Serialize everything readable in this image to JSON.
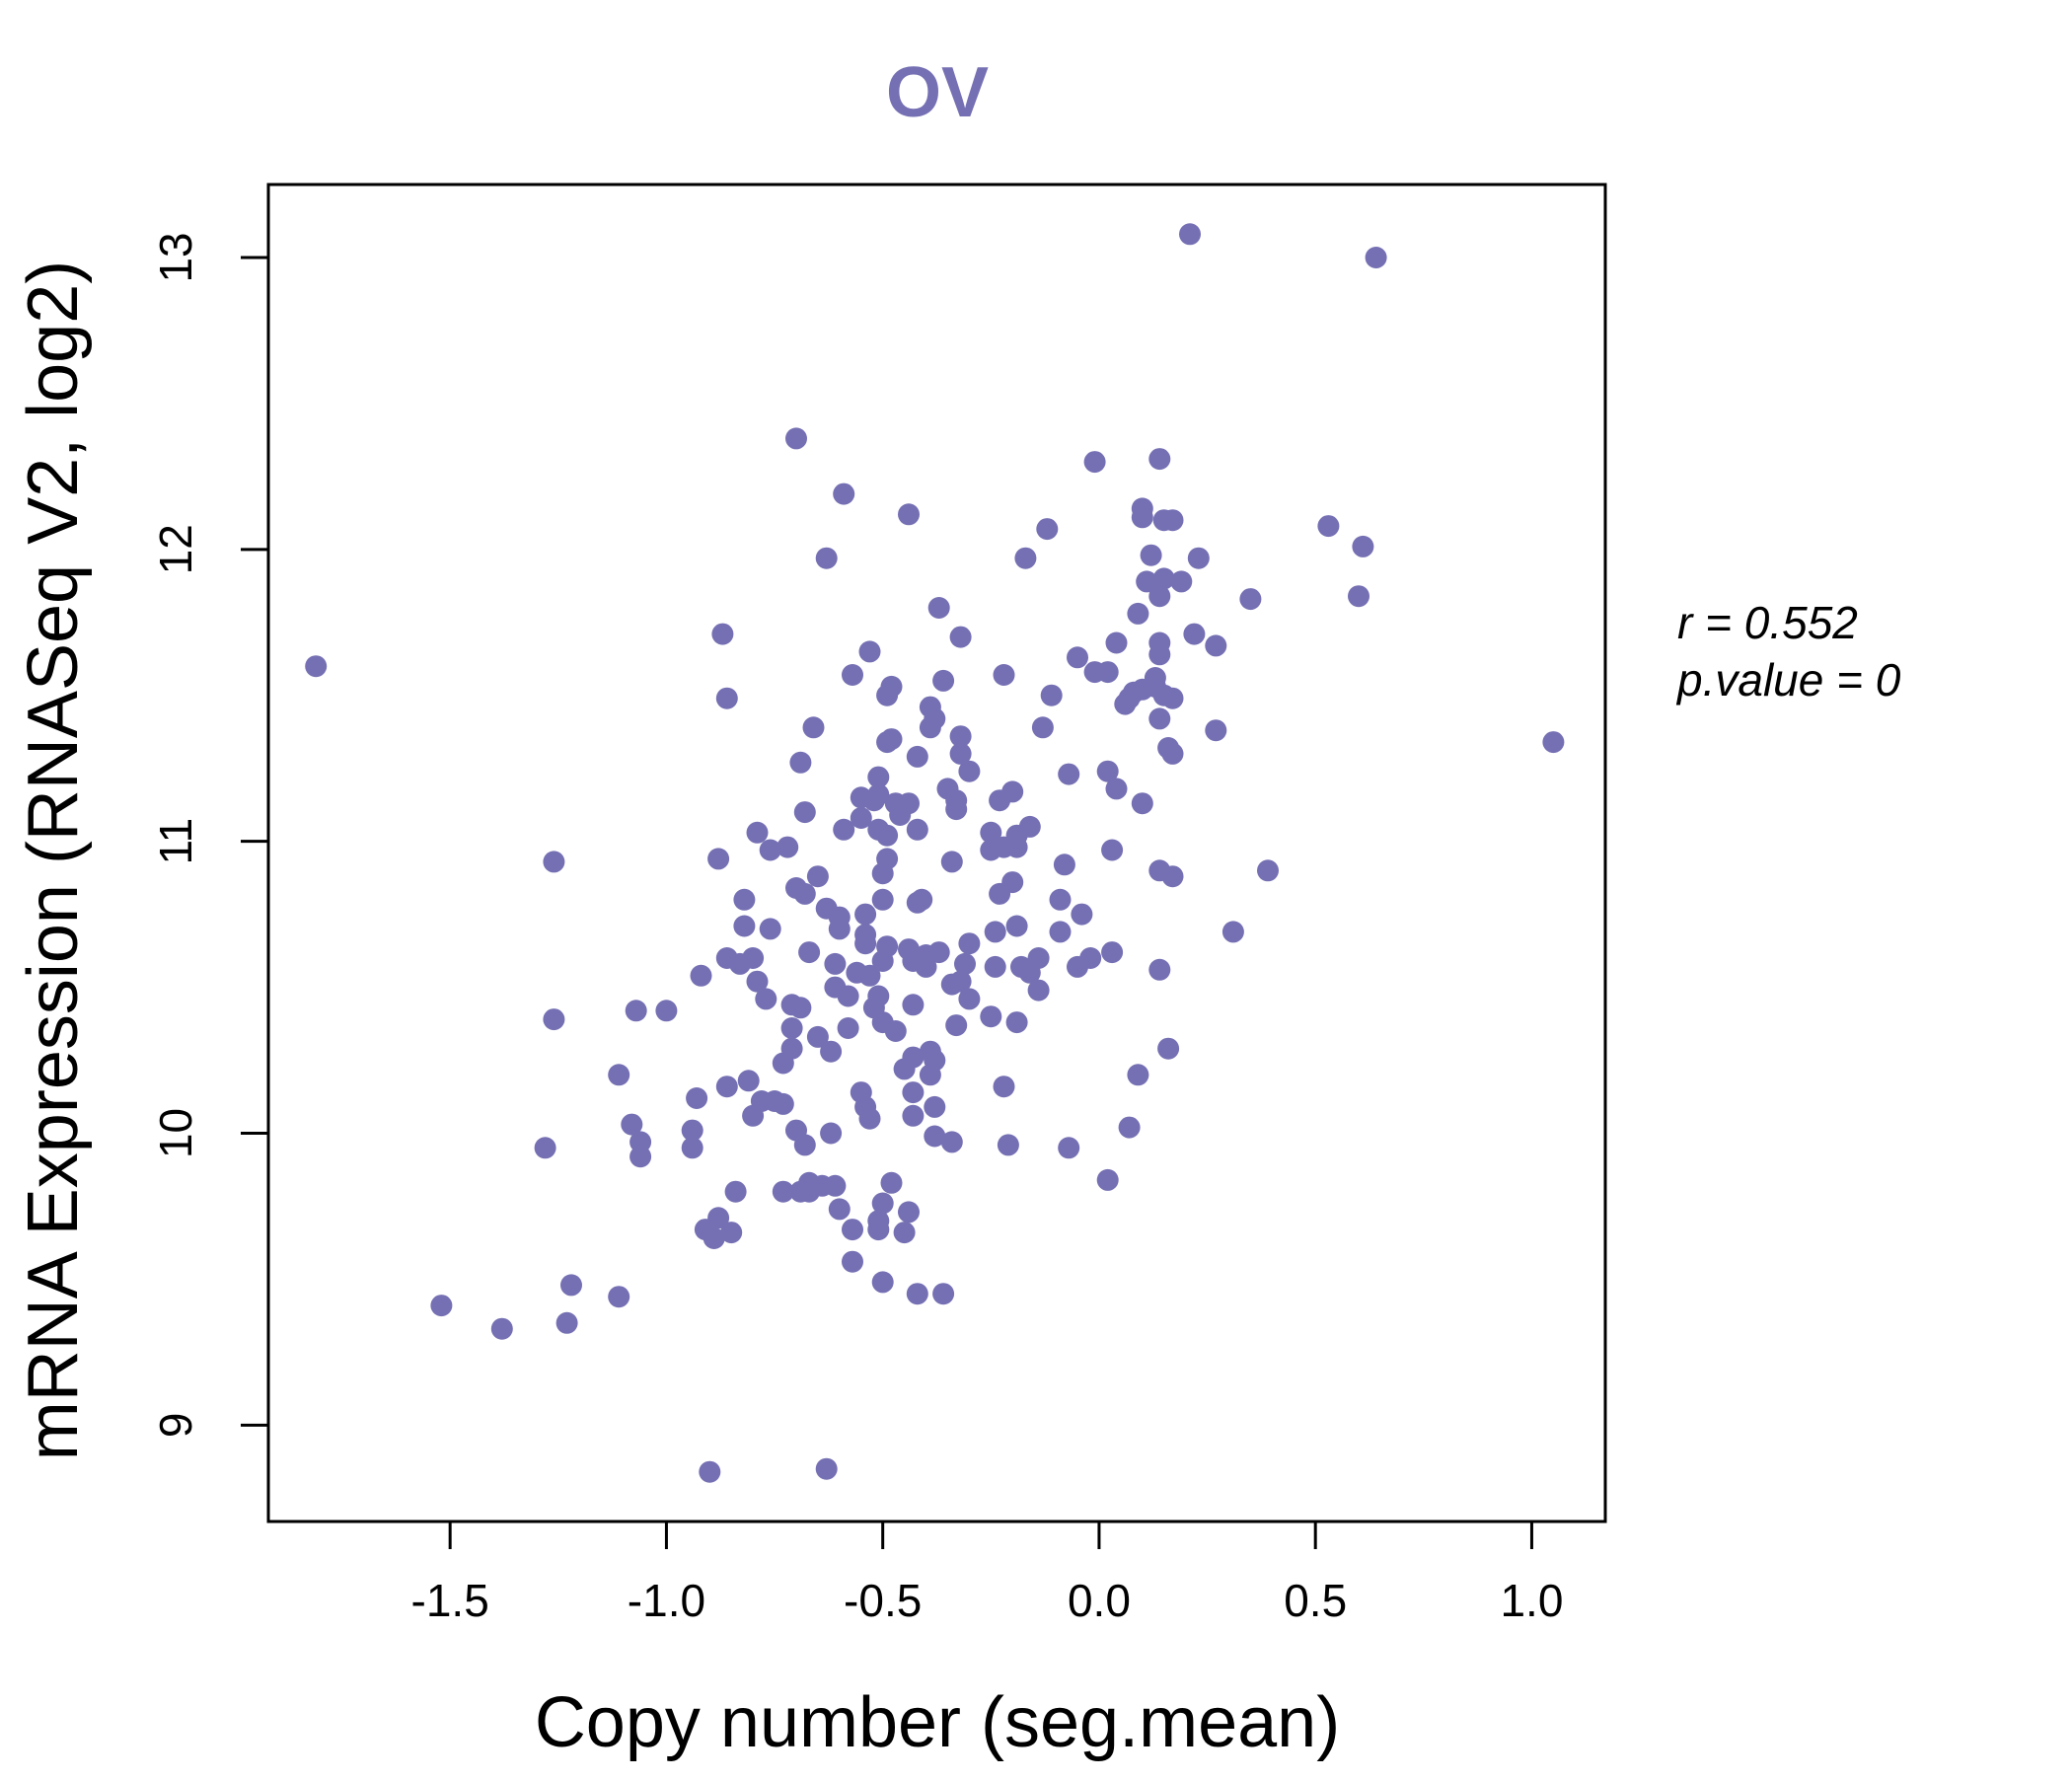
{
  "chart_data": {
    "type": "scatter",
    "title": "OV",
    "xlabel": "Copy number (seg.mean)",
    "ylabel": "mRNA Expression (RNASeq V2, log2)",
    "xlim": [
      -1.92,
      1.17
    ],
    "ylim": [
      8.67,
      13.25
    ],
    "xticks": [
      -1.5,
      -1.0,
      -0.5,
      0.0,
      0.5,
      1.0
    ],
    "xtick_labels": [
      "-1.5",
      "-1.0",
      "-0.5",
      "0.0",
      "0.5",
      "1.0"
    ],
    "yticks": [
      9,
      10,
      11,
      12,
      13
    ],
    "ytick_labels": [
      "9",
      "10",
      "11",
      "12",
      "13"
    ],
    "annotation": {
      "r_label": "r = 0.552",
      "p_label": "p.value = 0"
    },
    "color": "#7570b3",
    "points": [
      [
        -1.81,
        11.6
      ],
      [
        -1.52,
        9.41
      ],
      [
        -1.38,
        9.33
      ],
      [
        -1.28,
        9.95
      ],
      [
        -1.26,
        10.93
      ],
      [
        -1.26,
        10.39
      ],
      [
        -1.23,
        9.35
      ],
      [
        -1.22,
        9.48
      ],
      [
        -1.11,
        9.44
      ],
      [
        -1.11,
        10.2
      ],
      [
        -1.08,
        10.03
      ],
      [
        -1.07,
        10.42
      ],
      [
        -1.06,
        9.97
      ],
      [
        -1.06,
        9.92
      ],
      [
        -1.0,
        10.42
      ],
      [
        -0.94,
        10.01
      ],
      [
        -0.94,
        9.95
      ],
      [
        -0.93,
        10.12
      ],
      [
        -0.92,
        10.54
      ],
      [
        -0.91,
        9.67
      ],
      [
        -0.9,
        8.84
      ],
      [
        -0.89,
        9.64
      ],
      [
        -0.88,
        9.71
      ],
      [
        -0.88,
        10.94
      ],
      [
        -0.87,
        11.71
      ],
      [
        -0.86,
        11.49
      ],
      [
        -0.86,
        10.16
      ],
      [
        -0.86,
        10.6
      ],
      [
        -0.85,
        9.66
      ],
      [
        -0.84,
        9.8
      ],
      [
        -0.83,
        10.58
      ],
      [
        -0.82,
        10.71
      ],
      [
        -0.82,
        10.8
      ],
      [
        -0.81,
        10.18
      ],
      [
        -0.8,
        10.06
      ],
      [
        -0.8,
        10.6
      ],
      [
        -0.79,
        10.52
      ],
      [
        -0.79,
        11.03
      ],
      [
        -0.78,
        10.11
      ],
      [
        -0.77,
        10.46
      ],
      [
        -0.76,
        10.7
      ],
      [
        -0.76,
        10.97
      ],
      [
        -0.75,
        10.11
      ],
      [
        -0.73,
        9.8
      ],
      [
        -0.73,
        10.1
      ],
      [
        -0.73,
        10.24
      ],
      [
        -0.72,
        10.98
      ],
      [
        -0.71,
        10.29
      ],
      [
        -0.71,
        10.44
      ],
      [
        -0.71,
        10.36
      ],
      [
        -0.7,
        12.38
      ],
      [
        -0.7,
        10.84
      ],
      [
        -0.7,
        10.01
      ],
      [
        -0.69,
        11.27
      ],
      [
        -0.69,
        10.43
      ],
      [
        -0.69,
        9.8
      ],
      [
        -0.68,
        11.1
      ],
      [
        -0.68,
        10.82
      ],
      [
        -0.68,
        9.96
      ],
      [
        -0.67,
        9.83
      ],
      [
        -0.67,
        9.8
      ],
      [
        -0.67,
        10.62
      ],
      [
        -0.66,
        11.39
      ],
      [
        -0.65,
        10.33
      ],
      [
        -0.65,
        10.88
      ],
      [
        -0.64,
        9.82
      ],
      [
        -0.63,
        8.85
      ],
      [
        -0.63,
        11.97
      ],
      [
        -0.63,
        10.77
      ],
      [
        -0.62,
        10.28
      ],
      [
        -0.62,
        10.0
      ],
      [
        -0.61,
        9.82
      ],
      [
        -0.61,
        10.58
      ],
      [
        -0.61,
        10.5
      ],
      [
        -0.6,
        9.74
      ],
      [
        -0.6,
        10.74
      ],
      [
        -0.6,
        10.7
      ],
      [
        -0.59,
        11.04
      ],
      [
        -0.59,
        12.19
      ],
      [
        -0.58,
        10.36
      ],
      [
        -0.58,
        10.47
      ],
      [
        -0.57,
        9.56
      ],
      [
        -0.57,
        9.67
      ],
      [
        -0.57,
        11.57
      ],
      [
        -0.56,
        10.55
      ],
      [
        -0.55,
        11.15
      ],
      [
        -0.55,
        11.08
      ],
      [
        -0.55,
        10.14
      ],
      [
        -0.54,
        10.75
      ],
      [
        -0.54,
        10.09
      ],
      [
        -0.54,
        10.68
      ],
      [
        -0.54,
        10.65
      ],
      [
        -0.53,
        10.05
      ],
      [
        -0.53,
        11.65
      ],
      [
        -0.53,
        10.54
      ],
      [
        -0.52,
        11.14
      ],
      [
        -0.52,
        10.43
      ],
      [
        -0.51,
        9.67
      ],
      [
        -0.51,
        9.7
      ],
      [
        -0.51,
        11.04
      ],
      [
        -0.51,
        11.16
      ],
      [
        -0.51,
        11.22
      ],
      [
        -0.51,
        10.47
      ],
      [
        -0.5,
        9.49
      ],
      [
        -0.5,
        9.76
      ],
      [
        -0.5,
        10.89
      ],
      [
        -0.5,
        10.8
      ],
      [
        -0.5,
        10.38
      ],
      [
        -0.5,
        10.59
      ],
      [
        -0.49,
        11.5
      ],
      [
        -0.49,
        10.64
      ],
      [
        -0.49,
        11.34
      ],
      [
        -0.49,
        10.94
      ],
      [
        -0.49,
        11.02
      ],
      [
        -0.48,
        11.53
      ],
      [
        -0.48,
        11.35
      ],
      [
        -0.48,
        9.83
      ],
      [
        -0.47,
        10.35
      ],
      [
        -0.47,
        11.13
      ],
      [
        -0.46,
        11.09
      ],
      [
        -0.45,
        10.22
      ],
      [
        -0.45,
        9.66
      ],
      [
        -0.44,
        12.12
      ],
      [
        -0.44,
        10.63
      ],
      [
        -0.44,
        9.73
      ],
      [
        -0.44,
        11.13
      ],
      [
        -0.43,
        10.06
      ],
      [
        -0.43,
        10.59
      ],
      [
        -0.43,
        10.44
      ],
      [
        -0.43,
        10.26
      ],
      [
        -0.43,
        10.14
      ],
      [
        -0.42,
        10.79
      ],
      [
        -0.42,
        11.04
      ],
      [
        -0.42,
        9.45
      ],
      [
        -0.42,
        11.29
      ],
      [
        -0.41,
        10.8
      ],
      [
        -0.4,
        10.61
      ],
      [
        -0.4,
        10.57
      ],
      [
        -0.39,
        10.2
      ],
      [
        -0.39,
        11.46
      ],
      [
        -0.39,
        10.28
      ],
      [
        -0.39,
        11.39
      ],
      [
        -0.38,
        10.09
      ],
      [
        -0.38,
        11.42
      ],
      [
        -0.38,
        9.99
      ],
      [
        -0.38,
        10.25
      ],
      [
        -0.37,
        11.8
      ],
      [
        -0.37,
        10.62
      ],
      [
        -0.36,
        11.55
      ],
      [
        -0.36,
        9.45
      ],
      [
        -0.35,
        11.18
      ],
      [
        -0.34,
        10.93
      ],
      [
        -0.34,
        10.51
      ],
      [
        -0.34,
        9.97
      ],
      [
        -0.33,
        11.11
      ],
      [
        -0.33,
        11.14
      ],
      [
        -0.33,
        10.37
      ],
      [
        -0.32,
        11.7
      ],
      [
        -0.32,
        10.52
      ],
      [
        -0.32,
        11.36
      ],
      [
        -0.32,
        11.3
      ],
      [
        -0.31,
        10.58
      ],
      [
        -0.3,
        10.65
      ],
      [
        -0.3,
        10.46
      ],
      [
        -0.3,
        11.24
      ],
      [
        -0.25,
        11.03
      ],
      [
        -0.25,
        10.97
      ],
      [
        -0.25,
        10.4
      ],
      [
        -0.24,
        10.57
      ],
      [
        -0.24,
        10.69
      ],
      [
        -0.23,
        11.14
      ],
      [
        -0.23,
        10.82
      ],
      [
        -0.22,
        11.57
      ],
      [
        -0.22,
        10.16
      ],
      [
        -0.22,
        10.98
      ],
      [
        -0.21,
        9.96
      ],
      [
        -0.2,
        10.86
      ],
      [
        -0.2,
        11.17
      ],
      [
        -0.19,
        10.98
      ],
      [
        -0.19,
        10.71
      ],
      [
        -0.19,
        11.02
      ],
      [
        -0.19,
        10.38
      ],
      [
        -0.18,
        10.57
      ],
      [
        -0.17,
        11.97
      ],
      [
        -0.16,
        10.55
      ],
      [
        -0.16,
        11.05
      ],
      [
        -0.14,
        10.49
      ],
      [
        -0.14,
        10.6
      ],
      [
        -0.13,
        11.39
      ],
      [
        -0.12,
        12.07
      ],
      [
        -0.11,
        11.5
      ],
      [
        -0.09,
        10.69
      ],
      [
        -0.09,
        10.8
      ],
      [
        -0.08,
        10.92
      ],
      [
        -0.07,
        11.23
      ],
      [
        -0.07,
        9.95
      ],
      [
        -0.05,
        11.63
      ],
      [
        -0.05,
        10.57
      ],
      [
        -0.04,
        10.75
      ],
      [
        -0.02,
        10.6
      ],
      [
        -0.01,
        11.58
      ],
      [
        -0.01,
        12.3
      ],
      [
        0.02,
        11.24
      ],
      [
        0.02,
        11.58
      ],
      [
        0.02,
        9.84
      ],
      [
        0.03,
        10.62
      ],
      [
        0.03,
        10.97
      ],
      [
        0.04,
        11.68
      ],
      [
        0.04,
        11.18
      ],
      [
        0.06,
        11.47
      ],
      [
        0.07,
        11.49
      ],
      [
        0.07,
        10.02
      ],
      [
        0.08,
        11.51
      ],
      [
        0.09,
        10.2
      ],
      [
        0.09,
        11.78
      ],
      [
        0.1,
        12.14
      ],
      [
        0.1,
        11.13
      ],
      [
        0.1,
        12.11
      ],
      [
        0.1,
        11.52
      ],
      [
        0.11,
        11.89
      ],
      [
        0.12,
        11.98
      ],
      [
        0.13,
        11.53
      ],
      [
        0.13,
        11.56
      ],
      [
        0.14,
        11.68
      ],
      [
        0.14,
        11.64
      ],
      [
        0.14,
        11.42
      ],
      [
        0.14,
        10.9
      ],
      [
        0.14,
        10.56
      ],
      [
        0.14,
        12.31
      ],
      [
        0.14,
        11.84
      ],
      [
        0.15,
        11.9
      ],
      [
        0.15,
        11.5
      ],
      [
        0.15,
        12.1
      ],
      [
        0.16,
        11.32
      ],
      [
        0.16,
        10.29
      ],
      [
        0.17,
        11.49
      ],
      [
        0.17,
        10.88
      ],
      [
        0.17,
        11.3
      ],
      [
        0.17,
        12.1
      ],
      [
        0.19,
        11.89
      ],
      [
        0.21,
        13.08
      ],
      [
        0.22,
        11.71
      ],
      [
        0.23,
        11.97
      ],
      [
        0.27,
        11.38
      ],
      [
        0.27,
        11.67
      ],
      [
        0.31,
        10.69
      ],
      [
        0.35,
        11.83
      ],
      [
        0.39,
        10.9
      ],
      [
        0.53,
        12.08
      ],
      [
        0.6,
        11.84
      ],
      [
        0.61,
        12.01
      ],
      [
        0.64,
        13.0
      ],
      [
        1.05,
        11.34
      ]
    ]
  }
}
